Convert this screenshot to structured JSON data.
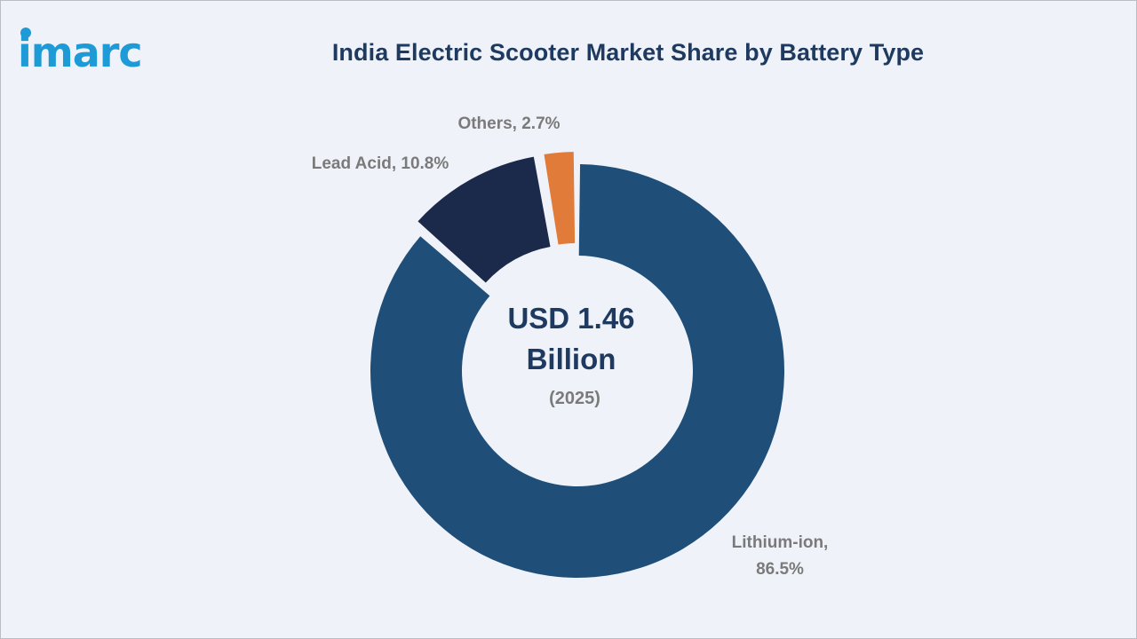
{
  "brand": {
    "name": "imarc",
    "colors": {
      "primary": "#1e9ad6",
      "text": "#1f3a60"
    }
  },
  "header": {
    "title": "India Electric Scooter Market Share by Battery Type"
  },
  "chart_data": {
    "type": "pie",
    "style": "donut",
    "title": "India Electric Scooter Market Share by Battery Type",
    "center_text": [
      "USD 1.46",
      "Billion"
    ],
    "center_subtext": "(2025)",
    "unit": "%",
    "segments": [
      {
        "label": "Lithium-ion",
        "value": 86.5,
        "color": "#1f4e78",
        "label_lines": [
          "Lithium-ion,",
          "86.5%"
        ]
      },
      {
        "label": "Lead Acid",
        "value": 10.8,
        "color": "#1b2a4a",
        "label_lines": [
          "Lead Acid, 10.8%"
        ]
      },
      {
        "label": "Others",
        "value": 2.7,
        "color": "#e07b39",
        "label_lines": [
          "Others, 2.7%"
        ]
      }
    ]
  }
}
